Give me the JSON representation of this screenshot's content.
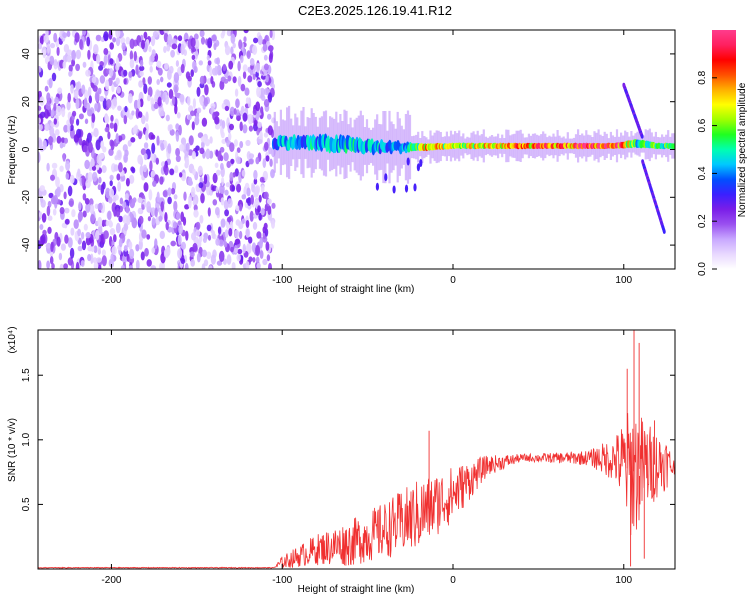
{
  "title": "C2E3.2025.126.19.41.R12",
  "chart_data": [
    {
      "type": "heatmap",
      "xlabel": "Height of straight line (km)",
      "ylabel": "Frequency (Hz)",
      "xlim": [
        -243,
        130
      ],
      "ylim": [
        -50,
        50
      ],
      "x_ticks": [
        -200,
        -100,
        0,
        100
      ],
      "y_ticks": [
        -40,
        -20,
        0,
        20,
        40
      ],
      "colorbar": {
        "label": "Normalized spectral amplitude",
        "range": [
          0,
          1
        ],
        "ticks": [
          "0.0",
          "0.2",
          "0.4",
          "0.6",
          "0.8"
        ],
        "colors": [
          "#ffffff",
          "#e8d8ff",
          "#c8a8ff",
          "#9a50f0",
          "#7a1ee8",
          "#3a20ff",
          "#0050ff",
          "#00c8ff",
          "#00ffb0",
          "#20ff20",
          "#a0ff00",
          "#ffff00",
          "#ffb000",
          "#ff5000",
          "#ff0000",
          "#ff2060",
          "#ff3c8c"
        ]
      },
      "noise_region": {
        "x_range": [
          -243,
          -105
        ],
        "level": 0.1
      },
      "ridge": [
        {
          "x": -105,
          "center": 3,
          "width": 4,
          "level": 0.4
        },
        {
          "x": -90,
          "center": 3,
          "width": 4,
          "level": 0.42
        },
        {
          "x": -75,
          "center": 2.5,
          "width": 5,
          "level": 0.42
        },
        {
          "x": -60,
          "center": 2,
          "width": 5,
          "level": 0.45
        },
        {
          "x": -45,
          "center": 1,
          "width": 4,
          "level": 0.42
        },
        {
          "x": -30,
          "center": 1,
          "width": 3,
          "level": 0.38
        },
        {
          "x": -15,
          "center": 1,
          "width": 2.5,
          "level": 0.7
        },
        {
          "x": 0,
          "center": 1.5,
          "width": 2,
          "level": 0.6
        },
        {
          "x": 20,
          "center": 1.5,
          "width": 2,
          "level": 0.7
        },
        {
          "x": 40,
          "center": 1.5,
          "width": 2,
          "level": 0.75
        },
        {
          "x": 60,
          "center": 1.5,
          "width": 2,
          "level": 0.78
        },
        {
          "x": 80,
          "center": 1.5,
          "width": 2,
          "level": 0.85
        },
        {
          "x": 95,
          "center": 1.5,
          "width": 2,
          "level": 0.92
        },
        {
          "x": 108,
          "center": 2.5,
          "width": 3,
          "level": 0.5
        },
        {
          "x": 120,
          "center": 1.5,
          "width": 2,
          "level": 0.55
        },
        {
          "x": 130,
          "center": 1.5,
          "width": 2,
          "level": 0.55
        }
      ],
      "streaks": [
        {
          "from": [
            100,
            27
          ],
          "to": [
            111,
            5
          ],
          "level": 0.28
        },
        {
          "from": [
            111,
            -5
          ],
          "to": [
            124,
            -35
          ],
          "level": 0.28
        }
      ]
    },
    {
      "type": "line",
      "xlabel": "Height of straight line (km)",
      "ylabel": "SNR (10 * v/v)",
      "yscale_label": "(x10⁴)",
      "xlim": [
        -243,
        130
      ],
      "ylim": [
        0,
        1.85
      ],
      "x_ticks": [
        -200,
        -100,
        0,
        100
      ],
      "y_ticks": [
        "0.5",
        "1.0",
        "1.5"
      ],
      "line_color": "#f03030",
      "envelope": [
        {
          "x": -243,
          "base": 0.01,
          "amp": 0.003
        },
        {
          "x": -105,
          "base": 0.01,
          "amp": 0.003
        },
        {
          "x": -100,
          "base": 0.05,
          "amp": 0.05
        },
        {
          "x": -80,
          "base": 0.15,
          "amp": 0.12
        },
        {
          "x": -60,
          "base": 0.2,
          "amp": 0.18
        },
        {
          "x": -40,
          "base": 0.3,
          "amp": 0.22
        },
        {
          "x": -20,
          "base": 0.42,
          "amp": 0.28
        },
        {
          "x": 0,
          "base": 0.58,
          "amp": 0.22
        },
        {
          "x": 20,
          "base": 0.8,
          "amp": 0.08
        },
        {
          "x": 40,
          "base": 0.86,
          "amp": 0.03
        },
        {
          "x": 60,
          "base": 0.86,
          "amp": 0.04
        },
        {
          "x": 80,
          "base": 0.86,
          "amp": 0.06
        },
        {
          "x": 95,
          "base": 0.85,
          "amp": 0.18
        },
        {
          "x": 105,
          "base": 0.75,
          "amp": 0.55
        },
        {
          "x": 113,
          "base": 0.8,
          "amp": 0.35
        },
        {
          "x": 125,
          "base": 0.82,
          "amp": 0.2
        },
        {
          "x": 130,
          "base": 0.78,
          "amp": 0.05
        }
      ],
      "peaks": [
        {
          "x": -14,
          "y": 1.07
        },
        {
          "x": 102,
          "y": 1.55
        },
        {
          "x": 106,
          "y": 1.85
        },
        {
          "x": 109,
          "y": 1.75
        },
        {
          "x": 104,
          "y": 0.02
        },
        {
          "x": 112,
          "y": 0.08
        },
        {
          "x": 118,
          "y": 1.15
        }
      ]
    }
  ]
}
